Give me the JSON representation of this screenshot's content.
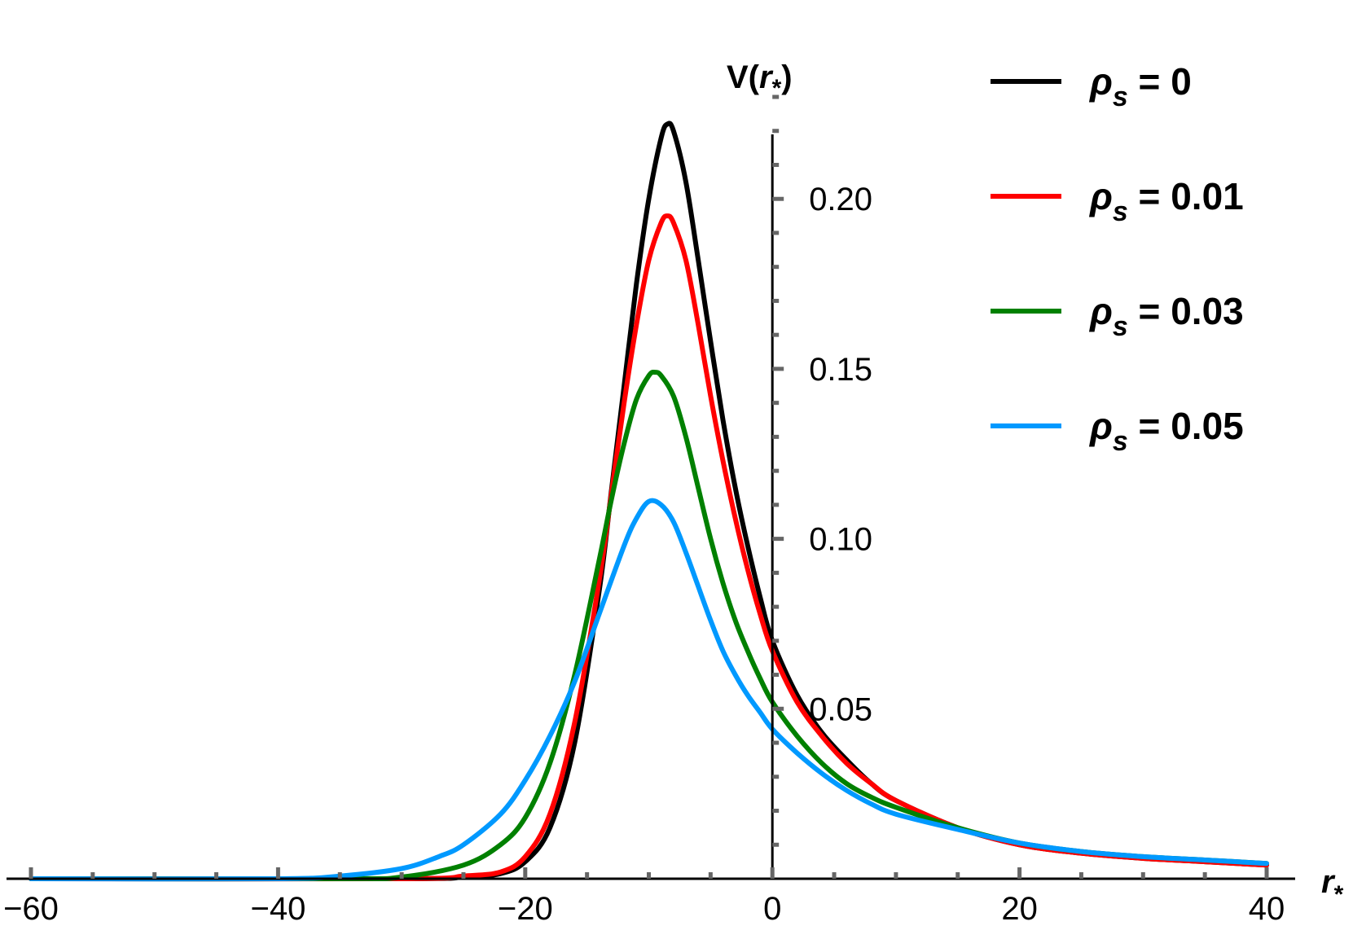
{
  "chart_data": {
    "type": "line",
    "title": "",
    "xlabel": {
      "main": "r",
      "sub": "*"
    },
    "ylabel": {
      "prefix": "V(",
      "main": "r",
      "sub": "*",
      "suffix": ")"
    },
    "xlim": [
      -60,
      40
    ],
    "ylim": [
      0,
      0.23
    ],
    "x_ticks": [
      -60,
      -40,
      -20,
      0,
      20,
      40
    ],
    "x_tick_labels": [
      "−60",
      "−40",
      "−20",
      "0",
      "20",
      "40"
    ],
    "y_ticks": [
      0.05,
      0.1,
      0.15,
      0.2
    ],
    "y_tick_labels": [
      "0.05",
      "0.10",
      "0.15",
      "0.20"
    ],
    "grid": false,
    "legend_position": "top-right",
    "series": [
      {
        "name": "ρs = 0",
        "legend": {
          "symbol": "ρ",
          "sub": "s",
          "rest": " = 0"
        },
        "color": "#000000",
        "x": [
          -60,
          -30,
          -25,
          -22,
          -20,
          -18,
          -16,
          -14,
          -13,
          -12,
          -11,
          -10,
          -9,
          -8.5,
          -8,
          -7,
          -6,
          -5,
          -4,
          -3,
          -2,
          -1,
          0,
          2,
          4,
          6,
          8,
          10,
          15,
          20,
          25,
          30,
          35,
          40
        ],
        "y": [
          0,
          0,
          0.0005,
          0.0015,
          0.005,
          0.015,
          0.04,
          0.085,
          0.115,
          0.145,
          0.175,
          0.2,
          0.218,
          0.222,
          0.22,
          0.205,
          0.182,
          0.158,
          0.135,
          0.115,
          0.098,
          0.083,
          0.07,
          0.054,
          0.043,
          0.035,
          0.028,
          0.023,
          0.015,
          0.01,
          0.0075,
          0.006,
          0.005,
          0.004
        ]
      },
      {
        "name": "ρs = 0.01",
        "legend": {
          "symbol": "ρ",
          "sub": "s",
          "rest": " = 0.01"
        },
        "color": "#ff0000",
        "x": [
          -60,
          -30,
          -25,
          -22,
          -20,
          -18,
          -16,
          -14,
          -13,
          -12,
          -11,
          -10,
          -9,
          -8.5,
          -8,
          -7,
          -6,
          -5,
          -4,
          -3,
          -2,
          -1,
          0,
          2,
          4,
          6,
          8,
          10,
          15,
          20,
          25,
          30,
          35,
          40
        ],
        "y": [
          0,
          0,
          0.0008,
          0.002,
          0.0065,
          0.019,
          0.046,
          0.088,
          0.114,
          0.14,
          0.163,
          0.182,
          0.193,
          0.195,
          0.193,
          0.182,
          0.163,
          0.142,
          0.123,
          0.106,
          0.091,
          0.078,
          0.067,
          0.052,
          0.042,
          0.034,
          0.028,
          0.023,
          0.015,
          0.01,
          0.0075,
          0.006,
          0.005,
          0.004
        ]
      },
      {
        "name": "ρs = 0.03",
        "legend": {
          "symbol": "ρ",
          "sub": "s",
          "rest": " = 0.03"
        },
        "color": "#008000",
        "x": [
          -60,
          -35,
          -30,
          -25,
          -22,
          -20,
          -18,
          -16,
          -14,
          -13,
          -12,
          -11,
          -10,
          -9.5,
          -9,
          -8,
          -7,
          -6,
          -5,
          -4,
          -3,
          -2,
          -1,
          0,
          2,
          4,
          6,
          8,
          10,
          15,
          20,
          25,
          30,
          35,
          40
        ],
        "y": [
          0,
          0,
          0.0005,
          0.004,
          0.01,
          0.018,
          0.034,
          0.06,
          0.094,
          0.112,
          0.128,
          0.141,
          0.148,
          0.149,
          0.148,
          0.142,
          0.13,
          0.115,
          0.1,
          0.087,
          0.076,
          0.067,
          0.059,
          0.052,
          0.042,
          0.034,
          0.028,
          0.024,
          0.021,
          0.015,
          0.0105,
          0.008,
          0.0065,
          0.0055,
          0.0045
        ]
      },
      {
        "name": "ρs = 0.05",
        "legend": {
          "symbol": "ρ",
          "sub": "s",
          "rest": " = 0.05"
        },
        "color": "#0099ff",
        "x": [
          -60,
          -40,
          -35,
          -30,
          -27,
          -25,
          -22,
          -20,
          -18,
          -16,
          -14,
          -12,
          -11,
          -10,
          -9,
          -8,
          -7,
          -6,
          -5,
          -4,
          -3,
          -2,
          -1,
          0,
          2,
          4,
          6,
          8,
          10,
          15,
          20,
          25,
          30,
          35,
          40
        ],
        "y": [
          0,
          0,
          0.0008,
          0.003,
          0.0065,
          0.01,
          0.019,
          0.029,
          0.042,
          0.058,
          0.078,
          0.098,
          0.106,
          0.111,
          0.11,
          0.105,
          0.096,
          0.086,
          0.076,
          0.067,
          0.06,
          0.054,
          0.049,
          0.044,
          0.037,
          0.031,
          0.026,
          0.022,
          0.019,
          0.0145,
          0.0105,
          0.008,
          0.0065,
          0.0055,
          0.0045
        ]
      }
    ]
  }
}
